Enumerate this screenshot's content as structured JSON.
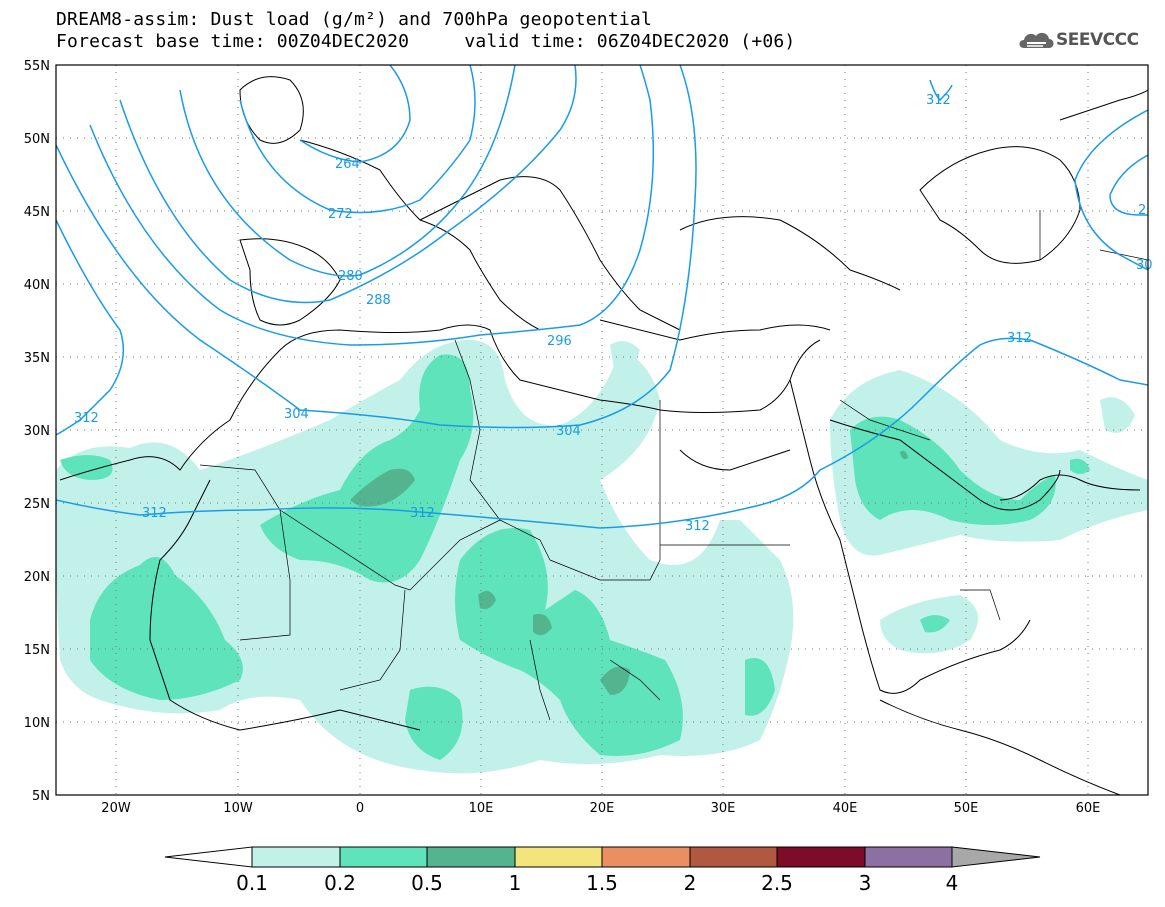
{
  "title": {
    "line1": "DREAM8-assim: Dust load (g/m²) and 700hPa geopotential",
    "line2": "Forecast base time: 00Z04DEC2020     valid time: 06Z04DEC2020 (+06)"
  },
  "logo": {
    "text": "SEEVCCC",
    "icon": "cloud-logo-icon"
  },
  "axes": {
    "lat_labels": [
      "55N",
      "50N",
      "45N",
      "40N",
      "35N",
      "30N",
      "25N",
      "20N",
      "15N",
      "10N",
      "5N"
    ],
    "lon_labels": [
      "20W",
      "10W",
      "0",
      "10E",
      "20E",
      "30E",
      "40E",
      "50E",
      "60E"
    ],
    "lat_range": [
      5,
      55
    ],
    "lon_range": [
      -25,
      65
    ],
    "grid": "dotted"
  },
  "contours": {
    "variable": "700hPa geopotential",
    "color": "#1a9be8",
    "labels": [
      "264",
      "272",
      "280",
      "288",
      "296",
      "304",
      "304",
      "312",
      "312",
      "312",
      "312",
      "312",
      "2",
      "30"
    ]
  },
  "colorbar": {
    "ticks": [
      "0.1",
      "0.2",
      "0.5",
      "1",
      "1.5",
      "2",
      "2.5",
      "3",
      "4"
    ],
    "colors": [
      "#ffffff",
      "#c2f1e9",
      "#5ee3bb",
      "#53b48f",
      "#f3e47c",
      "#eb8f63",
      "#b15840",
      "#7d0c28",
      "#8c6fa3",
      "#a8a8a8"
    ]
  }
}
